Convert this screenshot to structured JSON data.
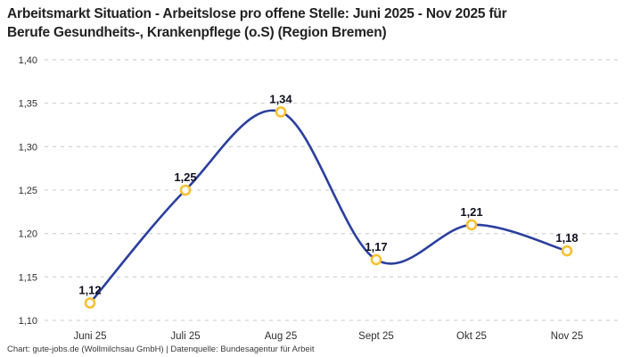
{
  "header": {
    "title_line1": "Arbeitsmarkt Situation - Arbeitslose pro offene Stelle: Juni 2025 - Nov 2025 für",
    "title_line2": "Berufe Gesundheits-, Krankenpflege (o.S) (Region Bremen)"
  },
  "footer": {
    "credit": "Chart: gute-jobs.de (Wollmilchsau GmbH) | Datenquelle: Bundesagentur für Arbeit"
  },
  "colors": {
    "background": "#ffffff",
    "line": "#2b3f9e",
    "marker_ring": "#f7c02f",
    "marker_fill": "#ffffff",
    "grid": "#c8c8c8",
    "title_text": "#222222",
    "axis_text": "#2e2e2e",
    "data_label": "#101020"
  },
  "chart_data": {
    "type": "line",
    "title": "Arbeitsmarkt Situation - Arbeitslose pro offene Stelle: Juni 2025 - Nov 2025 für Berufe Gesundheits-, Krankenpflege (o.S) (Region Bremen)",
    "categories": [
      "Juni 25",
      "Juli 25",
      "Aug 25",
      "Sept 25",
      "Okt 25",
      "Nov 25"
    ],
    "values": [
      1.12,
      1.25,
      1.34,
      1.17,
      1.21,
      1.18
    ],
    "value_labels": [
      "1,12",
      "1,25",
      "1,34",
      "1,17",
      "1,21",
      "1,18"
    ],
    "y_ticks": [
      {
        "value": 1.4,
        "label": "1,40"
      },
      {
        "value": 1.35,
        "label": "1,35"
      },
      {
        "value": 1.3,
        "label": "1,30"
      },
      {
        "value": 1.25,
        "label": "1,25"
      },
      {
        "value": 1.2,
        "label": "1,20"
      },
      {
        "value": 1.15,
        "label": "1,15"
      },
      {
        "value": 1.1,
        "label": "1,10"
      }
    ],
    "ylim": [
      1.1,
      1.4
    ],
    "xlabel": "",
    "ylabel": "",
    "grid": "horizontal-dashed",
    "legend": "none",
    "line_style": "smooth-spline",
    "marker": "hollow-circle"
  }
}
